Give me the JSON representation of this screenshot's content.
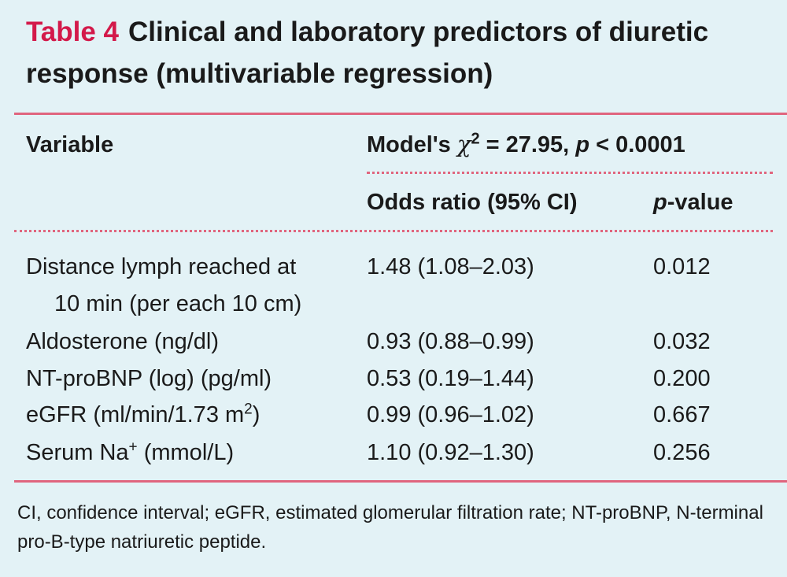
{
  "caption": {
    "label": "Table 4",
    "title": "Clinical and laboratory predictors of diuretic response (multivariable regression)"
  },
  "header": {
    "variable": "Variable",
    "model_prefix": "Model's",
    "chi_symbol": "χ",
    "chi_exp": "2",
    "chi_value": " = 27.95, ",
    "p_symbol": "p",
    "p_threshold": " < 0.0001",
    "odds_ratio": "Odds ratio (95% CI)",
    "pvalue_p": "p",
    "pvalue_suffix": "-value"
  },
  "rows": [
    {
      "variable": "Distance lymph reached at",
      "variable_cont": "10 min (per each 10 cm)",
      "or": "1.48 (1.08–2.03)",
      "p": "0.012"
    },
    {
      "variable": "Aldosterone (ng/dl)",
      "or": "0.93 (0.88–0.99)",
      "p": "0.032"
    },
    {
      "variable": "NT-proBNP (log) (pg/ml)",
      "or": "0.53 (0.19–1.44)",
      "p": "0.200"
    },
    {
      "variable_pre": "eGFR (ml/min/1.73 m",
      "variable_sup": "2",
      "variable_post": ")",
      "or": "0.99 (0.96–1.02)",
      "p": "0.667"
    },
    {
      "variable_pre": "Serum Na",
      "variable_sup": "+",
      "variable_post": " (mmol/L)",
      "or": "1.10 (0.92–1.30)",
      "p": "0.256"
    }
  ],
  "footnote": "CI, confidence interval; eGFR, estimated glomerular filtration rate; NT-proBNP, N-terminal pro-B-type natriuretic peptide.",
  "colors": {
    "background": "#e3f2f6",
    "accent": "#d3194a",
    "rule": "#e0657e",
    "text": "#1a1a1a"
  }
}
